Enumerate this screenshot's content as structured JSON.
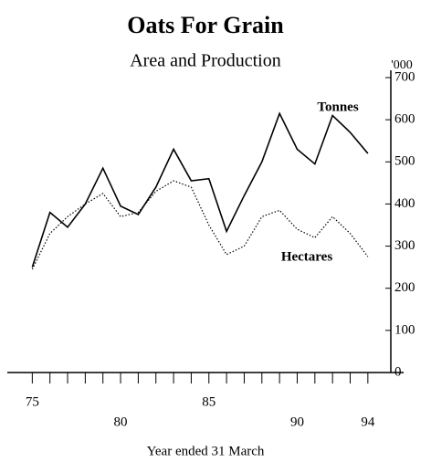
{
  "chart_data": {
    "type": "line",
    "title": "Oats For Grain",
    "subtitle": "Area and Production",
    "y_unit": "'000",
    "x_label": "Year ended 31 March",
    "x": [
      1975,
      1976,
      1977,
      1978,
      1979,
      1980,
      1981,
      1982,
      1983,
      1984,
      1985,
      1986,
      1987,
      1988,
      1989,
      1990,
      1991,
      1992,
      1993,
      1994
    ],
    "series": [
      {
        "name": "Tonnes",
        "color": "#000000",
        "dash": "solid",
        "values": [
          250,
          380,
          345,
          400,
          485,
          395,
          375,
          440,
          530,
          455,
          460,
          335,
          420,
          500,
          615,
          530,
          495,
          610,
          570,
          520
        ]
      },
      {
        "name": "Hectares",
        "color": "#000000",
        "dash": "dotted",
        "values": [
          245,
          330,
          370,
          400,
          425,
          370,
          380,
          430,
          455,
          440,
          350,
          280,
          300,
          370,
          385,
          340,
          320,
          370,
          330,
          275
        ]
      }
    ],
    "xlim": [
      1974,
      1995.3
    ],
    "xticks": [
      {
        "value": 1975,
        "label": "75"
      },
      {
        "value": 1980,
        "label": "80"
      },
      {
        "value": 1985,
        "label": "85"
      },
      {
        "value": 1990,
        "label": "90"
      },
      {
        "value": 1994,
        "label": "94"
      }
    ],
    "ylim": [
      0,
      700
    ],
    "yticks": [
      0,
      100,
      200,
      300,
      400,
      500,
      600,
      700
    ],
    "y_axis_side": "right"
  }
}
